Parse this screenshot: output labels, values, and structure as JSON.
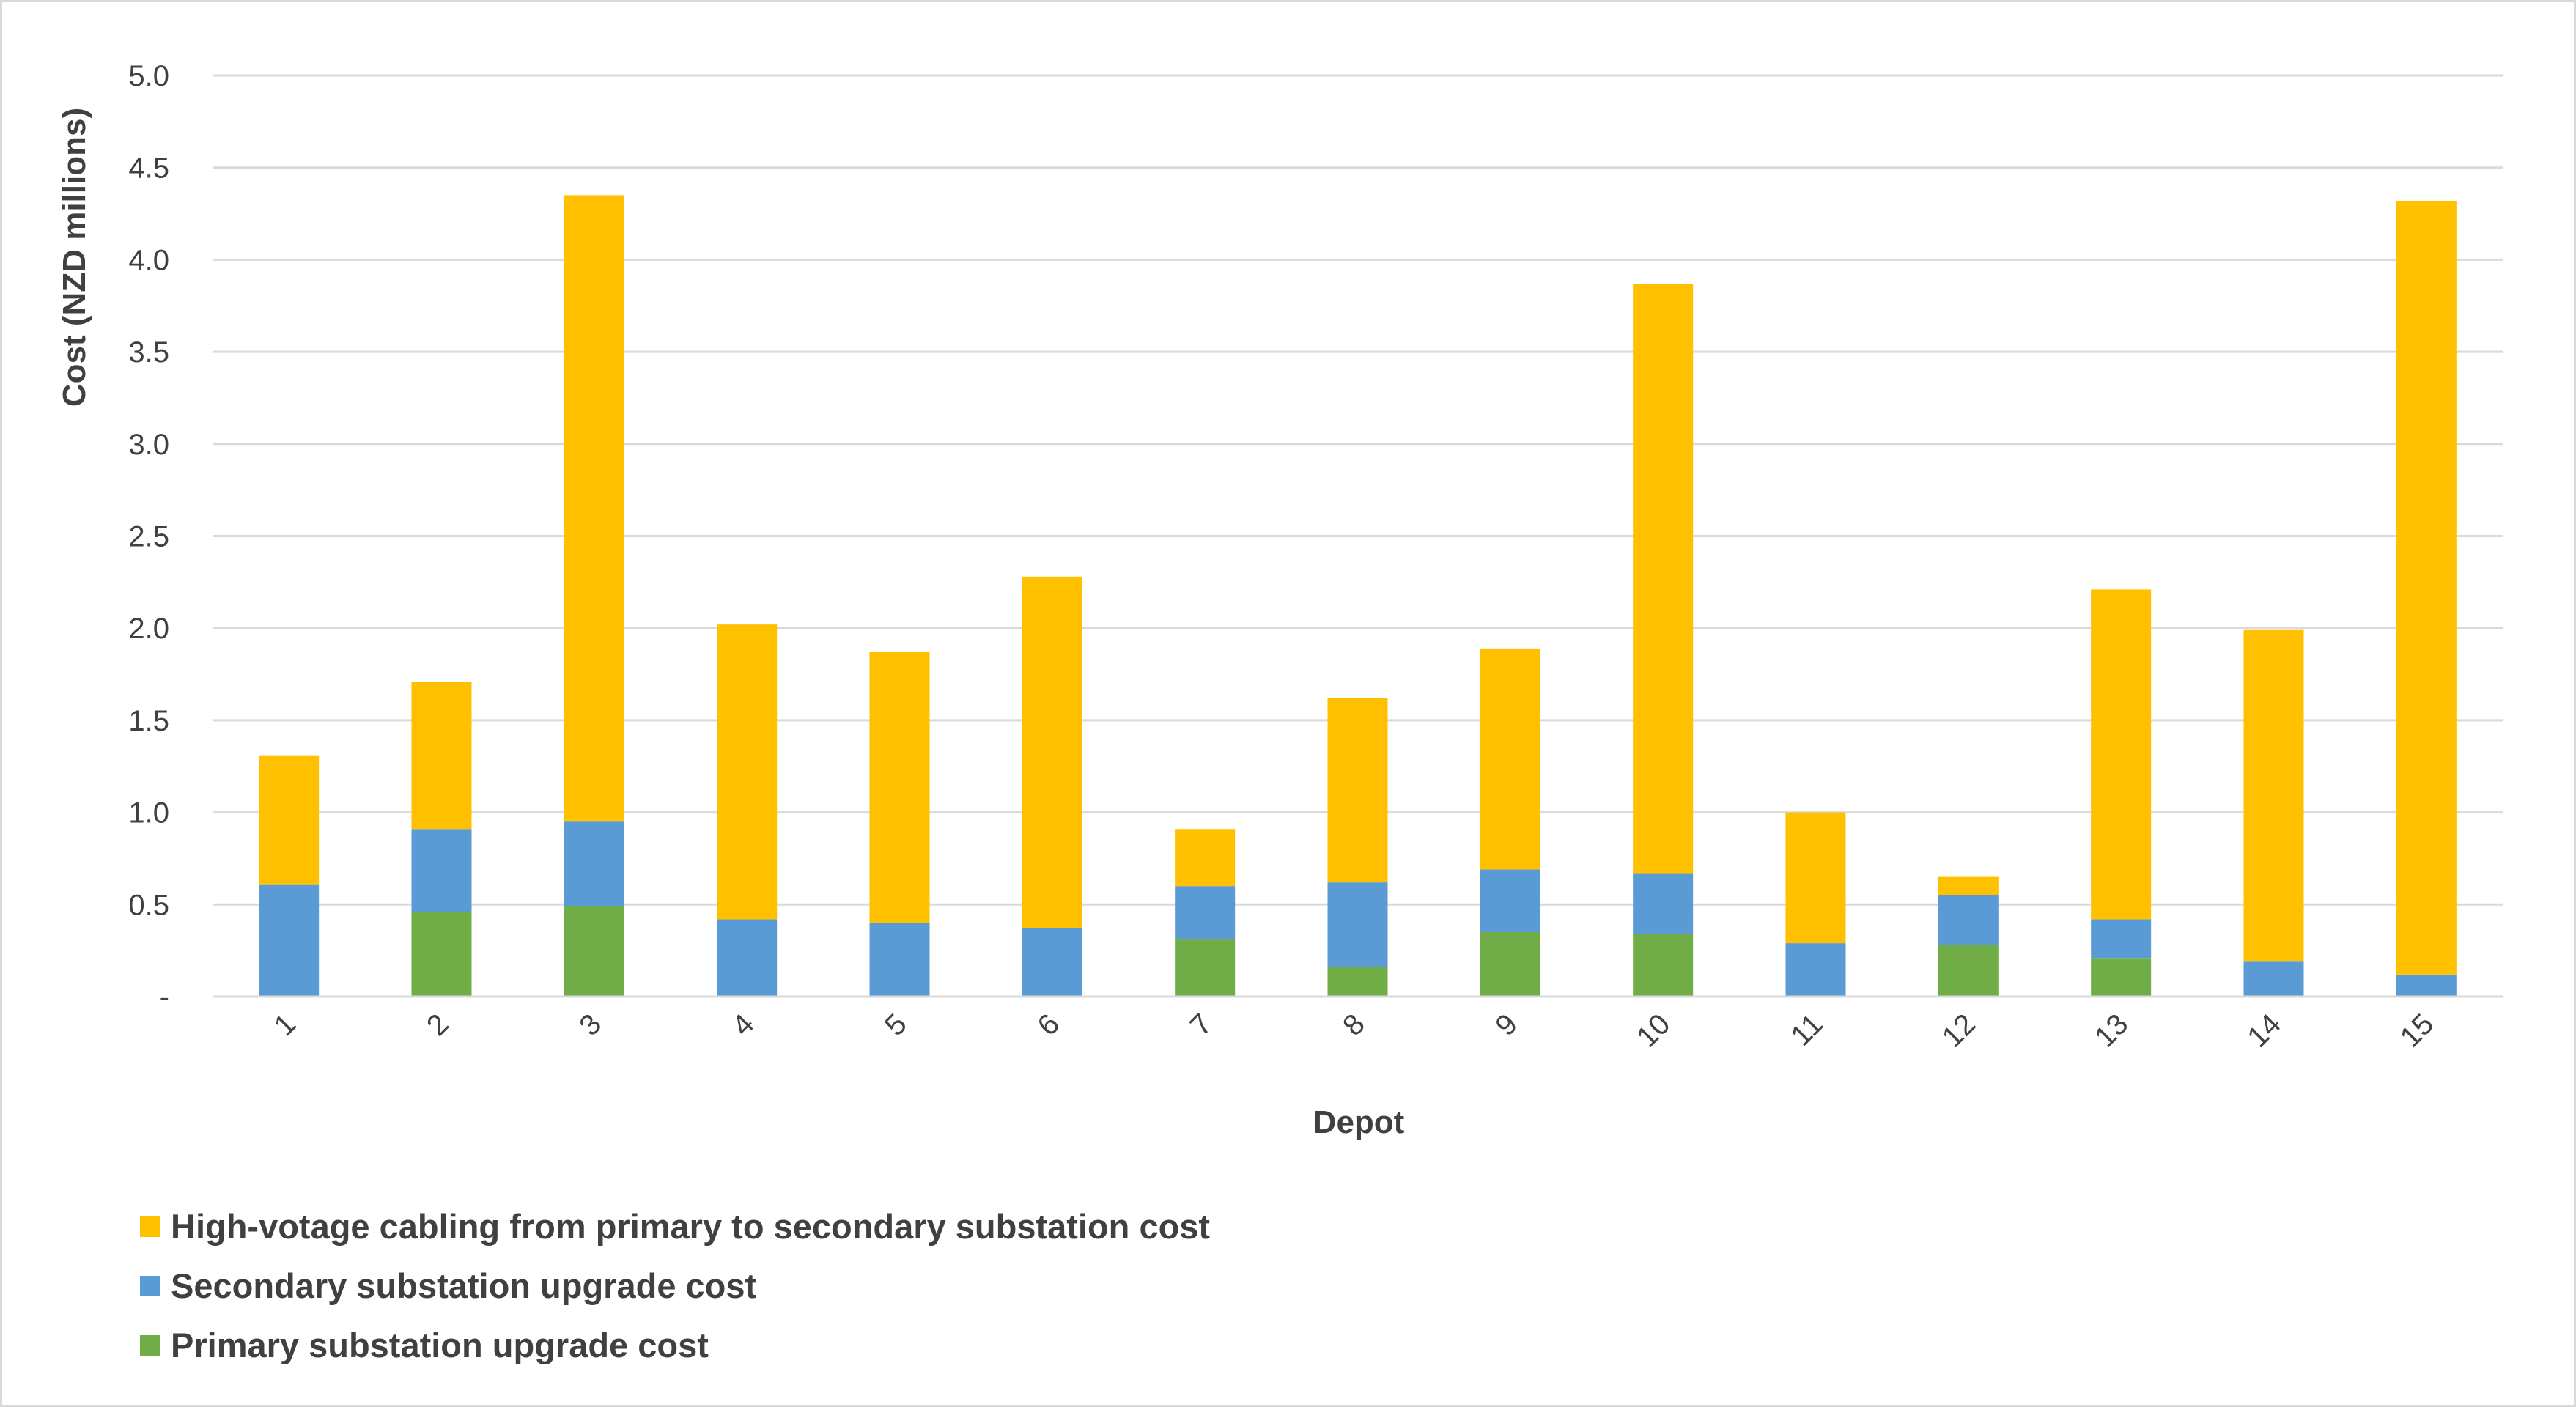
{
  "chart_data": {
    "type": "bar",
    "stacked": true,
    "title": "",
    "xlabel": "Depot",
    "ylabel": "Cost (NZD millions)",
    "ylim": [
      0,
      5
    ],
    "yticks": [
      "-",
      "0.5",
      "1.0",
      "1.5",
      "2.0",
      "2.5",
      "3.0",
      "3.5",
      "4.0",
      "4.5",
      "5.0"
    ],
    "grid": true,
    "legend_position": "bottom-left",
    "categories": [
      "1",
      "2",
      "3",
      "4",
      "5",
      "6",
      "7",
      "8",
      "9",
      "10",
      "11",
      "12",
      "13",
      "14",
      "15"
    ],
    "series": [
      {
        "name": "Primary substation upgrade cost",
        "color": "#70ad47",
        "values": [
          0,
          0.46,
          0.49,
          0,
          0,
          0,
          0.31,
          0.16,
          0.35,
          0.34,
          0,
          0.28,
          0.21,
          0,
          0
        ]
      },
      {
        "name": "Secondary substation upgrade cost",
        "color": "#5b9bd5",
        "values": [
          0.61,
          0.45,
          0.46,
          0.42,
          0.4,
          0.37,
          0.29,
          0.46,
          0.34,
          0.33,
          0.29,
          0.27,
          0.21,
          0.19,
          0.12
        ]
      },
      {
        "name": "High-votage cabling from primary to secondary substation cost",
        "color": "#ffc000",
        "values": [
          0.7,
          0.8,
          3.4,
          1.6,
          1.47,
          1.91,
          0.31,
          1.0,
          1.2,
          3.2,
          0.71,
          0.1,
          1.79,
          1.8,
          4.2
        ]
      }
    ],
    "legend_order": [
      2,
      1,
      0
    ]
  },
  "colors": {
    "grid": "#d9d9d9",
    "axis": "#d9d9d9",
    "text": "#404040"
  }
}
